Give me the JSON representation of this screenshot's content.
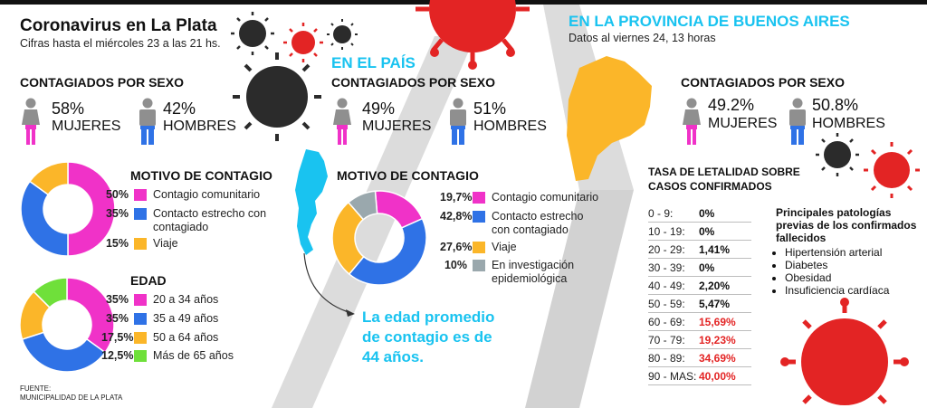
{
  "la_plata": {
    "title": "Coronavirus en La Plata",
    "subtitle": "Cifras hasta el miércoles 23 a las 21 hs.",
    "sexo_title": "CONTAGIADOS POR SEXO",
    "mujeres_pct": "58%",
    "mujeres_label": "MUJERES",
    "hombres_pct": "42%",
    "hombres_label": "HOMBRES",
    "motivo_title": "MOTIVO DE CONTAGIO",
    "edad_title": "EDAD",
    "fuente_line1": "FUENTE:",
    "fuente_line2": "MUNICIPALIDAD DE LA PLATA"
  },
  "pais": {
    "title": "EN EL PAÍS",
    "sexo_title": "CONTAGIADOS POR SEXO",
    "mujeres_pct": "49%",
    "mujeres_label": "MUJERES",
    "hombres_pct": "51%",
    "hombres_label": "HOMBRES",
    "motivo_title": "MOTIVO DE CONTAGIO",
    "edad_promedio": [
      "La edad promedio",
      "de contagio es de",
      "44 años."
    ]
  },
  "provincia": {
    "title": "EN LA PROVINCIA DE BUENOS AIRES",
    "subtitle": "Datos al viernes 24, 13 horas",
    "sexo_title": "CONTAGIADOS POR SEXO",
    "mujeres_pct": "49.2%",
    "mujeres_label": "MUJERES",
    "hombres_pct": "50.8%",
    "hombres_label": "HOMBRES",
    "letalidad_title": [
      "TASA DE LETALIDAD SOBRE",
      "CASOS CONFIRMADOS"
    ],
    "letalidad_rows": [
      {
        "rango": "0 - 9:",
        "valor": "0%"
      },
      {
        "rango": "10 - 19:",
        "valor": "0%"
      },
      {
        "rango": "20 - 29:",
        "valor": "1,41%"
      },
      {
        "rango": "30 - 39:",
        "valor": "0%"
      },
      {
        "rango": "40 - 49:",
        "valor": "2,20%"
      },
      {
        "rango": "50 - 59:",
        "valor": "5,47%"
      },
      {
        "rango": "60 - 69:",
        "valor": "15,69%"
      },
      {
        "rango": "70 - 79:",
        "valor": "19,23%"
      },
      {
        "rango": "80 - 89:",
        "valor": "34,69%"
      },
      {
        "rango": "90 - MAS:",
        "valor": "40,00%"
      }
    ],
    "patologias_title": [
      "Principales patologías",
      "previas de los confirmados",
      "fallecidos"
    ],
    "patologias": [
      "Hipertensión arterial",
      "Diabetes",
      "Obesidad",
      "Insuficiencia cardíaca"
    ]
  },
  "colors": {
    "magenta": "#f032c8",
    "blue": "#2f72e6",
    "yellow": "#fbb629",
    "gray": "#9aa8ad",
    "green": "#6fe03a",
    "cyan": "#19c3f0",
    "red_virus": "#e32424",
    "dark_virus": "#222222",
    "map_argentina": "#19c3f0",
    "map_buenos_aires": "#fbb629",
    "figure_gray": "#8f8f8f"
  },
  "chart_data": [
    {
      "type": "pie",
      "id": "motivo_la_plata",
      "title": "MOTIVO DE CONTAGIO",
      "slices": [
        {
          "label": "Contagio comunitario",
          "value": 50,
          "value_label": "50%",
          "color": "#f032c8"
        },
        {
          "label": "Contacto estrecho con contagiado",
          "value": 35,
          "value_label": "35%",
          "color": "#2f72e6"
        },
        {
          "label": "Viaje",
          "value": 15,
          "value_label": "15%",
          "color": "#fbb629"
        }
      ]
    },
    {
      "type": "pie",
      "id": "edad_la_plata",
      "title": "EDAD",
      "slices": [
        {
          "label": "20 a 34 años",
          "value": 35,
          "value_label": "35%",
          "color": "#f032c8"
        },
        {
          "label": "35 a 49 años",
          "value": 35,
          "value_label": "35%",
          "color": "#2f72e6"
        },
        {
          "label": "50 a 64 años",
          "value": 17.5,
          "value_label": "17,5%",
          "color": "#fbb629"
        },
        {
          "label": "Más de 65 años",
          "value": 12.5,
          "value_label": "12,5%",
          "color": "#6fe03a"
        }
      ]
    },
    {
      "type": "pie",
      "id": "motivo_pais",
      "title": "MOTIVO DE CONTAGIO",
      "slices": [
        {
          "label": "Contagio comunitario",
          "value": 19.7,
          "value_label": "19,7%",
          "color": "#f032c8"
        },
        {
          "label": "Contacto estrecho con contagiado",
          "value": 42.8,
          "value_label": "42,8%",
          "color": "#2f72e6"
        },
        {
          "label": "Viaje",
          "value": 27.6,
          "value_label": "27,6%",
          "color": "#fbb629"
        },
        {
          "label": "En investigación epidemiológica",
          "value": 10,
          "value_label": "10%",
          "color": "#9aa8ad"
        }
      ]
    }
  ]
}
